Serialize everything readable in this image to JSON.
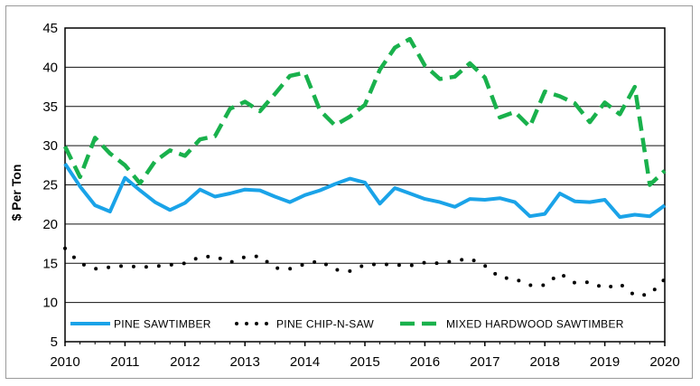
{
  "chart_data": {
    "type": "line",
    "title": "",
    "xlabel": "",
    "ylabel": "$ Per Ton",
    "ylim": [
      5,
      45
    ],
    "xlim": [
      2010,
      2020
    ],
    "yticks": [
      "5",
      "10",
      "15",
      "20",
      "25",
      "30",
      "35",
      "40",
      "45"
    ],
    "xticks": [
      "2010",
      "2011",
      "2012",
      "2013",
      "2014",
      "2015",
      "2016",
      "2017",
      "2018",
      "2019",
      "2020"
    ],
    "grid": true,
    "legend_position": "bottom-inside",
    "series": [
      {
        "name": "PINE SAWTIMBER",
        "color": "#1aa3e8",
        "style": "solid",
        "x": [
          2010.0,
          2010.25,
          2010.5,
          2010.75,
          2011.0,
          2011.25,
          2011.5,
          2011.75,
          2012.0,
          2012.25,
          2012.5,
          2012.75,
          2013.0,
          2013.25,
          2013.5,
          2013.75,
          2014.0,
          2014.25,
          2014.5,
          2014.75,
          2015.0,
          2015.25,
          2015.5,
          2015.75,
          2016.0,
          2016.25,
          2016.5,
          2016.75,
          2017.0,
          2017.25,
          2017.5,
          2017.75,
          2018.0,
          2018.25,
          2018.5,
          2018.75,
          2019.0,
          2019.25,
          2019.5,
          2019.75,
          2020.0
        ],
        "y": [
          27.7,
          24.8,
          22.4,
          21.6,
          25.9,
          24.3,
          22.8,
          21.8,
          22.7,
          24.4,
          23.5,
          23.9,
          24.4,
          24.3,
          23.5,
          22.8,
          23.7,
          24.3,
          25.1,
          25.8,
          25.3,
          22.6,
          24.6,
          23.9,
          23.2,
          22.8,
          22.2,
          23.2,
          23.1,
          23.3,
          22.8,
          21.0,
          21.3,
          23.9,
          22.9,
          22.8,
          23.1,
          20.9,
          21.2,
          21.0,
          22.4
        ]
      },
      {
        "name": "PINE CHIP-N-SAW",
        "color": "#000000",
        "style": "dotted",
        "x": [
          2010.0,
          2010.25,
          2010.5,
          2010.75,
          2011.0,
          2011.25,
          2011.5,
          2011.75,
          2012.0,
          2012.25,
          2012.5,
          2012.75,
          2013.0,
          2013.25,
          2013.5,
          2013.75,
          2014.0,
          2014.25,
          2014.5,
          2014.75,
          2015.0,
          2015.25,
          2015.5,
          2015.75,
          2016.0,
          2016.25,
          2016.5,
          2016.75,
          2017.0,
          2017.25,
          2017.5,
          2017.75,
          2018.0,
          2018.25,
          2018.5,
          2018.75,
          2019.0,
          2019.25,
          2019.5,
          2019.75,
          2020.0
        ],
        "y": [
          16.9,
          15.0,
          14.3,
          14.5,
          14.7,
          14.5,
          14.6,
          14.8,
          15.0,
          15.8,
          15.9,
          15.1,
          15.8,
          15.9,
          14.4,
          14.3,
          14.9,
          15.3,
          14.2,
          14.0,
          14.8,
          14.9,
          14.8,
          14.7,
          15.1,
          15.0,
          15.3,
          15.6,
          14.7,
          13.2,
          13.0,
          12.2,
          12.2,
          13.7,
          12.5,
          12.6,
          11.8,
          12.4,
          10.9,
          11.0,
          13.0
        ]
      },
      {
        "name": "MIXED HARDWOOD SAWTIMBER",
        "color": "#19b14c",
        "style": "dashed",
        "x": [
          2010.0,
          2010.25,
          2010.5,
          2010.75,
          2011.0,
          2011.25,
          2011.5,
          2011.75,
          2012.0,
          2012.25,
          2012.5,
          2012.75,
          2013.0,
          2013.25,
          2013.5,
          2013.75,
          2014.0,
          2014.25,
          2014.5,
          2014.75,
          2015.0,
          2015.25,
          2015.5,
          2015.75,
          2016.0,
          2016.25,
          2016.5,
          2016.75,
          2017.0,
          2017.25,
          2017.5,
          2017.75,
          2018.0,
          2018.25,
          2018.5,
          2018.75,
          2019.0,
          2019.25,
          2019.5,
          2019.75,
          2020.0
        ],
        "y": [
          29.9,
          26.0,
          31.0,
          29.0,
          27.5,
          25.2,
          28.0,
          29.4,
          28.7,
          30.8,
          31.2,
          34.7,
          35.6,
          34.4,
          36.6,
          38.9,
          39.3,
          34.5,
          32.6,
          33.7,
          35.2,
          39.7,
          42.5,
          43.6,
          40.2,
          38.5,
          38.8,
          40.5,
          38.7,
          33.6,
          34.3,
          32.4,
          36.9,
          36.3,
          35.4,
          33.0,
          35.5,
          34.0,
          37.5,
          25.0,
          26.8
        ]
      }
    ]
  }
}
